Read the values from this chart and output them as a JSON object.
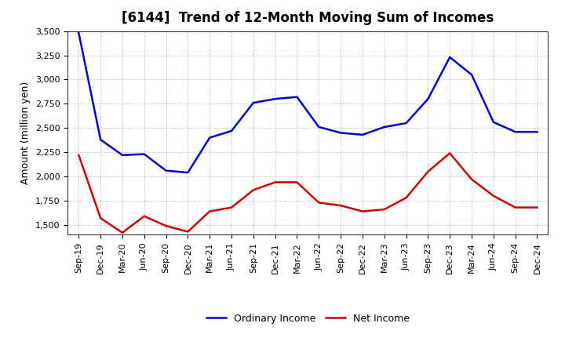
{
  "title": "[6144]  Trend of 12-Month Moving Sum of Incomes",
  "ylabel": "Amount (million yen)",
  "x_labels": [
    "Sep-19",
    "Dec-19",
    "Mar-20",
    "Jun-20",
    "Sep-20",
    "Dec-20",
    "Mar-21",
    "Jun-21",
    "Sep-21",
    "Dec-21",
    "Mar-22",
    "Jun-22",
    "Sep-22",
    "Dec-22",
    "Mar-23",
    "Jun-23",
    "Sep-23",
    "Dec-23",
    "Mar-24",
    "Jun-24",
    "Sep-24",
    "Dec-24"
  ],
  "ordinary_income": [
    3480,
    2380,
    2220,
    2230,
    2060,
    2040,
    2400,
    2470,
    2760,
    2800,
    2820,
    2510,
    2450,
    2430,
    2510,
    2550,
    2800,
    3230,
    3050,
    2560,
    2460,
    2460
  ],
  "net_income": [
    2220,
    1570,
    1420,
    1590,
    1490,
    1430,
    1640,
    1680,
    1860,
    1940,
    1940,
    1730,
    1700,
    1640,
    1660,
    1780,
    2050,
    2240,
    1970,
    1800,
    1680,
    1680
  ],
  "ordinary_color": "#0000cc",
  "net_color": "#cc0000",
  "ylim": [
    1400,
    3500
  ],
  "yticks": [
    1500,
    1750,
    2000,
    2250,
    2500,
    2750,
    3000,
    3250,
    3500
  ],
  "background_color": "#ffffff",
  "grid_color": "#aaaaaa",
  "title_fontsize": 12,
  "axis_fontsize": 9,
  "tick_fontsize": 8,
  "legend_fontsize": 9,
  "line_width": 1.8
}
